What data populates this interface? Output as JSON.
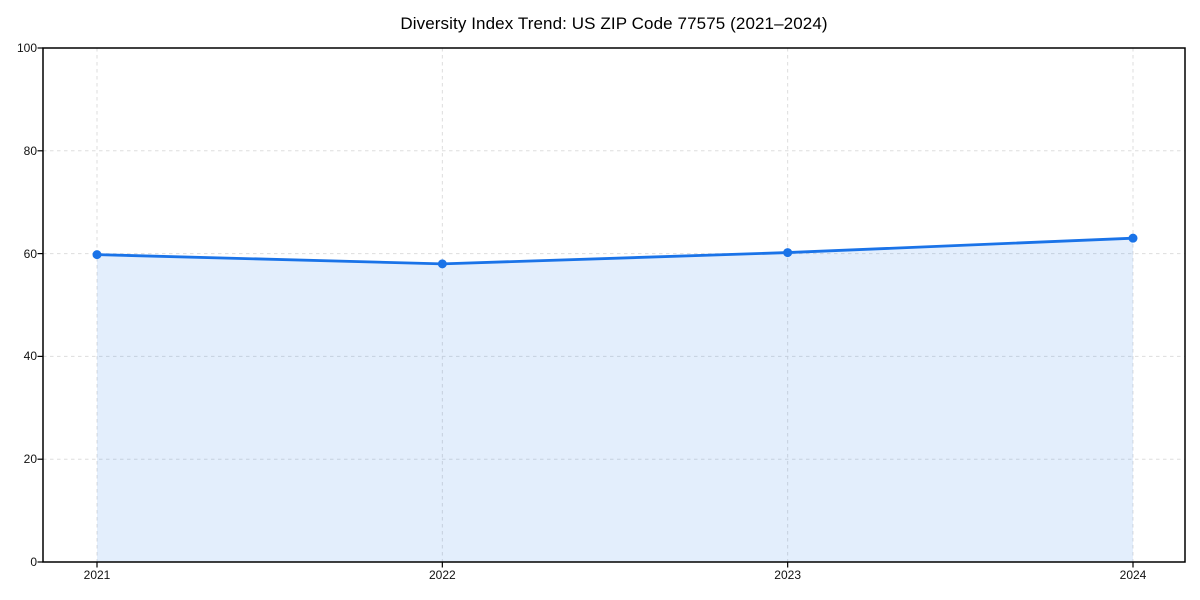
{
  "chart_data": {
    "type": "area",
    "title": "Diversity Index Trend: US ZIP Code 77575 (2021–2024)",
    "series_name": "Diversity Index",
    "categories": [
      "2021",
      "2022",
      "2023",
      "2024"
    ],
    "values": [
      59.8,
      58.0,
      60.2,
      63.0
    ],
    "xlabel": "",
    "ylabel": "",
    "ylim": [
      0,
      100
    ],
    "yticks": [
      0,
      20,
      40,
      60,
      80,
      100
    ],
    "grid": true,
    "grid_style": "dashed",
    "legend": "none",
    "colors": {
      "line": "#1a73e8",
      "marker": "#1a73e8",
      "fill": "rgba(26,115,232,0.12)",
      "grid": "#dddddd",
      "axis": "#000000",
      "background": "#ffffff",
      "title_text": "#000000",
      "tick_text": "#111111"
    }
  }
}
